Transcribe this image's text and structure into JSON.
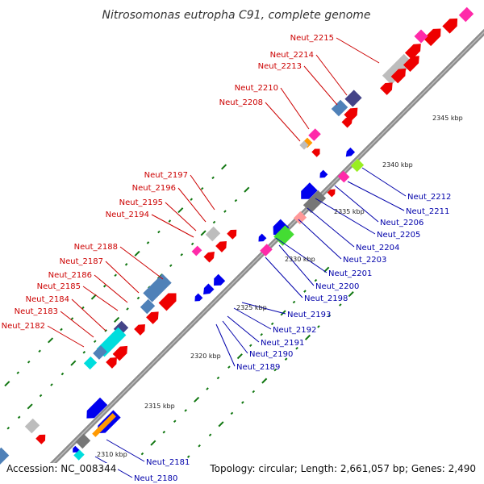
{
  "title": "Nitrosomonas eutropha C91, complete genome",
  "footer": {
    "accession": "Accession: NC_008344",
    "summary": "Topology: circular; Length: 2,661,057 bp; Genes: 2,490"
  },
  "colors": {
    "backbone": "#8c8c8c",
    "forward_label": "#cc0000",
    "reverse_label": "#0000aa",
    "tick_dots": "#117711",
    "gene_red": "#ee0000",
    "gene_blue": "#0000ee",
    "gene_steelblue": "#4f81b8",
    "gene_navy": "#444488",
    "gene_cyan": "#00dddd",
    "gene_gray": "#bdbdbd",
    "gene_darkgray": "#777777",
    "gene_pink": "#ff2aa9",
    "gene_orange": "#ff9900",
    "gene_green": "#44dd33",
    "gene_lime": "#99ee22",
    "gene_salmon": "#ff9999"
  },
  "ticks": [
    "2310 kbp",
    "2315 kbp",
    "2320 kbp",
    "2325 kbp",
    "2330 kbp",
    "2335 kbp",
    "2340 kbp",
    "2345 kbp"
  ],
  "forward_labels": [
    "Neut_2215",
    "Neut_2214",
    "Neut_2213",
    "Neut_2210",
    "Neut_2208",
    "Neut_2197",
    "Neut_2196",
    "Neut_2195",
    "Neut_2194",
    "Neut_2188",
    "Neut_2187",
    "Neut_2186",
    "Neut_2185",
    "Neut_2184",
    "Neut_2183",
    "Neut_2182"
  ],
  "reverse_labels": [
    "Neut_2212",
    "Neut_2211",
    "Neut_2206",
    "Neut_2205",
    "Neut_2204",
    "Neut_2203",
    "Neut_2201",
    "Neut_2200",
    "Neut_2198",
    "Neut_2193",
    "Neut_2192",
    "Neut_2191",
    "Neut_2190",
    "Neut_2189",
    "Neut_2181",
    "Neut_2180"
  ]
}
